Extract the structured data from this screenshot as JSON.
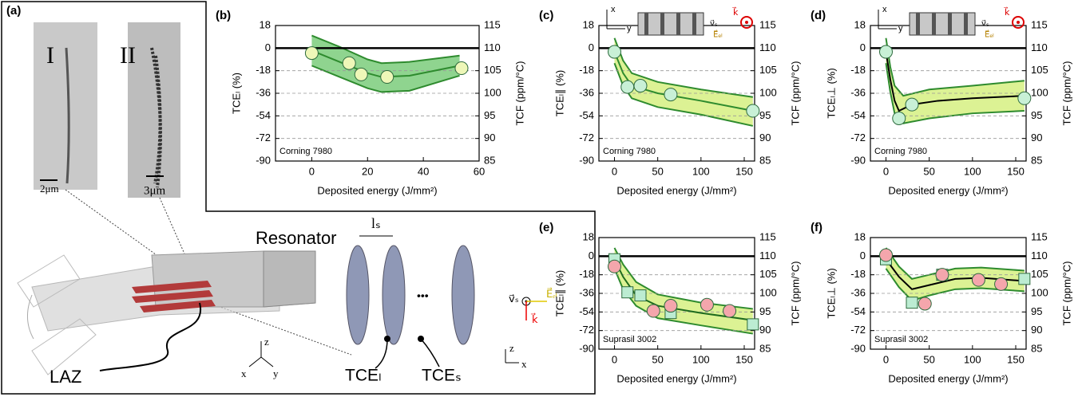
{
  "panel_a": {
    "label": "(a)",
    "sem_labels": [
      "I",
      "II"
    ],
    "scale_bars": [
      "2μm",
      "3μm"
    ],
    "resonator": "Resonator",
    "laz": "LAZ",
    "spacing": "lₛ",
    "ellipsis": "•••",
    "tce_labels": [
      "TCEₗ",
      "TCEₛ"
    ],
    "axes_3d": [
      "z",
      "x",
      "y"
    ],
    "axes_2d": [
      "z",
      "x"
    ],
    "vectors": [
      "v⃗ₛ",
      "E⃗ₑₗ",
      "k⃗"
    ]
  },
  "chart_data": [
    {
      "type": "scatter",
      "panel_label": "(b)",
      "annotation": "Corning 7980",
      "xlabel": "Deposited energy (J/mm²)",
      "ylabel": "TCEₗ (%)",
      "y2label": "TCF (ppm/°C)",
      "xlim": [
        -13,
        60
      ],
      "xticks": [
        0,
        20,
        40,
        60
      ],
      "ylim": [
        -90,
        18
      ],
      "yticks": [
        -90,
        -72,
        -54,
        -36,
        -18,
        0,
        18
      ],
      "y2lim": [
        85,
        115
      ],
      "y2ticks": [
        85,
        90,
        95,
        100,
        105,
        110,
        115
      ],
      "grid": true,
      "band": {
        "x": [
          0,
          10,
          20,
          25,
          35,
          53
        ],
        "upper": [
          10,
          1,
          -9,
          -12,
          -11,
          -6
        ],
        "lower": [
          -14,
          -23,
          -32,
          -35,
          -34,
          -22
        ],
        "color": "#8fd48f",
        "edge_color": "#2e8b2e"
      },
      "fit": {
        "x": [
          0,
          10,
          20,
          25,
          35,
          53
        ],
        "values": [
          -2,
          -11,
          -20,
          -23,
          -22,
          -14
        ],
        "color": "#2e8b2e"
      },
      "series": [
        {
          "marker": "circle",
          "color": "#eef7b8",
          "x": [
            0,
            13.4,
            17.7,
            27,
            53.7
          ],
          "values": [
            -4,
            -12,
            -21,
            -23,
            -16
          ]
        }
      ]
    },
    {
      "type": "scatter",
      "panel_label": "(c)",
      "annotation": "Corning 7980",
      "xlabel": "Deposited energy (J/mm²)",
      "ylabel": "TCEₗ∥ (%)",
      "y2label": "TCF (ppm/°C)",
      "inset_labels": [
        "x",
        "y",
        "v⃗ₛ",
        "E⃗ₑₗ",
        "k⃗"
      ],
      "xlim": [
        -18,
        162
      ],
      "xticks": [
        0,
        50,
        100,
        150
      ],
      "ylim": [
        -90,
        18
      ],
      "yticks": [
        -90,
        -72,
        -54,
        -36,
        -18,
        0,
        18
      ],
      "y2lim": [
        85,
        115
      ],
      "y2ticks": [
        85,
        90,
        95,
        100,
        105,
        110,
        115
      ],
      "grid": true,
      "band": {
        "x": [
          0,
          10,
          20,
          50,
          100,
          160
        ],
        "upper": [
          8,
          -10,
          -20,
          -27,
          -33,
          -39
        ],
        "lower": [
          -12,
          -30,
          -40,
          -47,
          -53,
          -62
        ],
        "color": "#dcf294",
        "edge_color": "#2e8b2e"
      },
      "fit": {
        "x": [
          0,
          10,
          20,
          50,
          100,
          160
        ],
        "values": [
          -3,
          -20,
          -30,
          -36,
          -42,
          -50
        ],
        "color": "#2e8b2e"
      },
      "series": [
        {
          "marker": "circle",
          "color": "#c8f0d6",
          "x": [
            0,
            15,
            30,
            65,
            160
          ],
          "values": [
            -3,
            -31,
            -30,
            -37,
            -50
          ]
        }
      ]
    },
    {
      "type": "scatter",
      "panel_label": "(d)",
      "annotation": "Corning 7980",
      "xlabel": "Deposited energy (J/mm²)",
      "ylabel": "TCEₗ⊥ (%)",
      "y2label": "TCF (ppm/°C)",
      "inset_labels": [
        "x",
        "y",
        "v⃗ₛ",
        "E⃗ₑₗ",
        "k⃗"
      ],
      "xlim": [
        -18,
        162
      ],
      "xticks": [
        0,
        50,
        100,
        150
      ],
      "ylim": [
        -90,
        18
      ],
      "yticks": [
        -90,
        -72,
        -54,
        -36,
        -18,
        0,
        18
      ],
      "y2lim": [
        85,
        115
      ],
      "y2ticks": [
        85,
        90,
        95,
        100,
        105,
        110,
        115
      ],
      "grid": true,
      "band": {
        "x": [
          0,
          5,
          10,
          20,
          50,
          100,
          160
        ],
        "upper": [
          8,
          -15,
          -30,
          -38,
          -33,
          -30,
          -26
        ],
        "lower": [
          -12,
          -35,
          -52,
          -60,
          -56,
          -52,
          -50
        ],
        "color": "#dcf294",
        "edge_color": "#2e8b2e"
      },
      "fit": {
        "x": [
          0,
          5,
          10,
          15,
          30,
          60,
          100,
          160
        ],
        "values": [
          -3,
          -25,
          -42,
          -50,
          -45,
          -42,
          -40,
          -38
        ],
        "color": "#000000"
      },
      "series": [
        {
          "marker": "circle",
          "color": "#c8f0d6",
          "x": [
            0,
            15,
            30,
            160
          ],
          "values": [
            -3,
            -56,
            -45,
            -40
          ]
        }
      ]
    },
    {
      "type": "scatter",
      "panel_label": "(e)",
      "annotation": "Suprasil 3002",
      "xlabel": "Deposited energy (J/mm²)",
      "ylabel": "TCEₗ∥ (%)",
      "y2label": "TCF (ppm/°C)",
      "xlim": [
        -18,
        162
      ],
      "xticks": [
        0,
        50,
        100,
        150
      ],
      "ylim": [
        -90,
        18
      ],
      "yticks": [
        -90,
        -72,
        -54,
        -36,
        -18,
        0,
        18
      ],
      "y2lim": [
        85,
        115
      ],
      "y2ticks": [
        85,
        90,
        95,
        100,
        105,
        110,
        115
      ],
      "grid": true,
      "band": {
        "x": [
          0,
          10,
          25,
          50,
          100,
          160
        ],
        "upper": [
          8,
          -8,
          -25,
          -37,
          -45,
          -51
        ],
        "lower": [
          -12,
          -32,
          -48,
          -60,
          -67,
          -75
        ],
        "color": "#dcf294",
        "edge_color": "#2e8b2e"
      },
      "fit": {
        "x": [
          0,
          10,
          25,
          50,
          100,
          160
        ],
        "values": [
          -3,
          -20,
          -38,
          -48,
          -55,
          -62
        ],
        "color": "#1e6b1e"
      },
      "series": [
        {
          "marker": "square",
          "color": "#bcecd2",
          "x": [
            0,
            15,
            30,
            65,
            160
          ],
          "values": [
            -3,
            -35,
            -38,
            -55,
            -66
          ]
        },
        {
          "marker": "circle",
          "color": "#f4a6ac",
          "x": [
            0,
            45,
            65,
            107,
            133
          ],
          "values": [
            -10,
            -53,
            -48,
            -47,
            -53
          ]
        }
      ]
    },
    {
      "type": "scatter",
      "panel_label": "(f)",
      "annotation": "Suprasil 3002",
      "xlabel": "Deposited energy (J/mm²)",
      "ylabel": "TCEₗ⊥ (%)",
      "y2label": "TCF (ppm/°C)",
      "xlim": [
        -18,
        162
      ],
      "xticks": [
        0,
        50,
        100,
        150
      ],
      "ylim": [
        -90,
        18
      ],
      "yticks": [
        -90,
        -72,
        -54,
        -36,
        -18,
        0,
        18
      ],
      "y2lim": [
        85,
        115
      ],
      "y2ticks": [
        85,
        90,
        95,
        100,
        105,
        110,
        115
      ],
      "grid": true,
      "band": {
        "x": [
          0,
          15,
          30,
          50,
          80,
          110,
          160
        ],
        "upper": [
          8,
          -10,
          -22,
          -18,
          -12,
          -11,
          -14
        ],
        "lower": [
          -12,
          -30,
          -43,
          -38,
          -32,
          -31,
          -34
        ],
        "color": "#dcf294",
        "edge_color": "#2e8b2e"
      },
      "fit": {
        "x": [
          0,
          15,
          30,
          50,
          80,
          110,
          160
        ],
        "values": [
          -3,
          -20,
          -32,
          -28,
          -22,
          -21,
          -24
        ],
        "color": "#000000"
      },
      "series": [
        {
          "marker": "square",
          "color": "#bcecd2",
          "x": [
            0,
            30,
            65,
            160
          ],
          "values": [
            -3,
            -45,
            -18,
            -22
          ]
        },
        {
          "marker": "circle",
          "color": "#f4a6ac",
          "x": [
            0,
            45,
            65,
            107,
            133
          ],
          "values": [
            1,
            -46,
            -18,
            -23,
            -27
          ]
        }
      ]
    }
  ]
}
